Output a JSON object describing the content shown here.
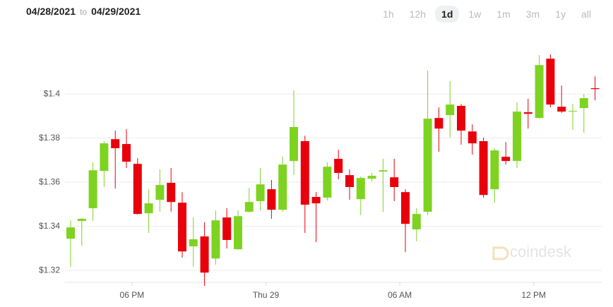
{
  "header": {
    "from": "04/28/2021",
    "sep": "to",
    "to": "04/29/2021",
    "ranges": [
      "1h",
      "12h",
      "1d",
      "1w",
      "1m",
      "3m",
      "1y",
      "all"
    ],
    "selected": "1d"
  },
  "watermark": "coindesk",
  "chart_data": {
    "type": "candlestick",
    "categories": [
      null,
      null,
      null,
      null,
      null,
      null,
      null,
      null,
      null,
      null,
      null,
      null,
      null,
      null,
      null,
      null,
      null,
      null,
      null,
      null,
      null,
      null,
      null,
      null,
      null,
      null,
      null,
      null,
      null,
      null,
      null,
      null,
      null,
      null,
      null,
      null,
      null,
      null,
      null,
      null,
      null,
      null,
      null,
      null,
      null,
      null,
      null,
      null
    ],
    "open": [
      1.3344,
      1.3424,
      1.3482,
      1.3651,
      1.3795,
      1.3773,
      1.3683,
      1.3459,
      1.352,
      1.3597,
      1.3507,
      1.3309,
      1.3354,
      1.3254,
      1.344,
      1.3296,
      1.3466,
      1.3514,
      1.3568,
      1.3475,
      1.3696,
      1.3786,
      1.3533,
      1.353,
      1.3706,
      1.3632,
      1.3523,
      1.3616,
      1.3648,
      1.3622,
      1.3555,
      1.3386,
      1.3466,
      1.3891,
      1.3904,
      1.3946,
      1.383,
      1.3786,
      1.3568,
      1.3715,
      1.3696,
      1.3917,
      1.3891,
      1.416,
      1.3942,
      1.392,
      1.3936,
      1.4026
    ],
    "high": [
      1.3427,
      1.3437,
      1.369,
      1.3786,
      1.3834,
      1.384,
      1.3709,
      1.3568,
      1.3658,
      1.3664,
      1.3555,
      1.344,
      1.3418,
      1.3472,
      1.3482,
      1.3472,
      1.3574,
      1.3664,
      1.361,
      1.3715,
      1.4016,
      1.3811,
      1.3555,
      1.369,
      1.3747,
      1.3658,
      1.3626,
      1.3642,
      1.3706,
      1.3706,
      1.3568,
      1.3482,
      1.4106,
      1.3939,
      1.4058,
      1.3955,
      1.3862,
      1.3802,
      1.3754,
      1.3782,
      1.3962,
      1.3978,
      1.4176,
      1.4179,
      1.4038,
      1.3955,
      1.4,
      1.408
    ],
    "low": [
      1.3216,
      1.3312,
      1.3424,
      1.3578,
      1.3571,
      1.3664,
      1.3453,
      1.337,
      1.3466,
      1.3466,
      1.3258,
      1.3216,
      1.313,
      1.3226,
      1.3299,
      1.3293,
      1.3463,
      1.3472,
      1.3434,
      1.3466,
      1.3632,
      1.337,
      1.3328,
      1.3517,
      1.3613,
      1.352,
      1.345,
      1.3603,
      1.3466,
      1.3514,
      1.3283,
      1.3331,
      1.345,
      1.3738,
      1.3802,
      1.377,
      1.3725,
      1.353,
      1.3507,
      1.368,
      1.3664,
      1.3843,
      1.3888,
      1.3939,
      1.3914,
      1.3837,
      1.3824,
      1.3971
    ],
    "close": [
      1.3395,
      1.3434,
      1.3654,
      1.3776,
      1.3754,
      1.3693,
      1.3456,
      1.3504,
      1.3587,
      1.351,
      1.3286,
      1.3341,
      1.319,
      1.3427,
      1.3338,
      1.3446,
      1.351,
      1.359,
      1.3475,
      1.368,
      1.385,
      1.3498,
      1.3504,
      1.367,
      1.3642,
      1.3578,
      1.3619,
      1.3629,
      1.3654,
      1.3578,
      1.3411,
      1.3456,
      1.3888,
      1.3843,
      1.3952,
      1.3834,
      1.3776,
      1.3542,
      1.3744,
      1.3696,
      1.392,
      1.391,
      1.4131,
      1.3952,
      1.392,
      1.3923,
      1.3981,
      1.4022
    ],
    "up_color": "#7ed321",
    "down_color": "#e8000b",
    "ylim": [
      1.313,
      1.4282
    ],
    "yticks": [
      {
        "value": 1.32,
        "label": "$1.32"
      },
      {
        "value": 1.34,
        "label": "$1.34"
      },
      {
        "value": 1.36,
        "label": "$1.36"
      },
      {
        "value": 1.38,
        "label": "$1.38"
      },
      {
        "value": 1.4,
        "label": "$1.4"
      }
    ],
    "xticks": [
      {
        "value": 5.5,
        "label": "06 PM"
      },
      {
        "value": 17.5,
        "label": "Thu 29"
      },
      {
        "value": 29.5,
        "label": "06 AM"
      },
      {
        "value": 41.5,
        "label": "12 PM"
      }
    ],
    "grid": true
  }
}
